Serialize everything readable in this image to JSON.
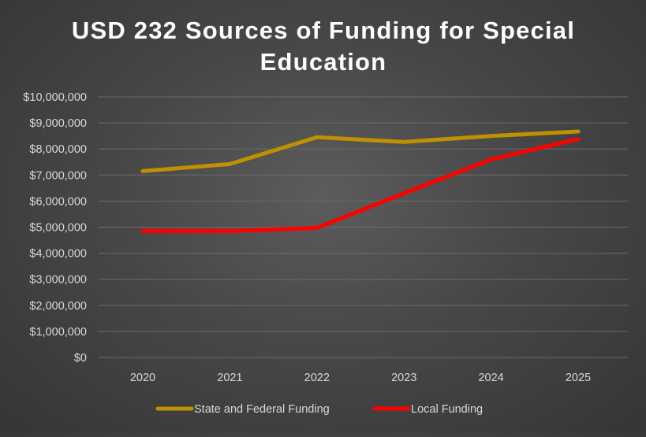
{
  "chart_data": {
    "type": "line",
    "title_lines": [
      "USD 232 Sources of Funding for Special",
      "Education"
    ],
    "xlabel": "",
    "ylabel": "",
    "categories": [
      "2020",
      "2021",
      "2022",
      "2023",
      "2024",
      "2025"
    ],
    "ylim": [
      0,
      10000000
    ],
    "yticks": [
      0,
      1000000,
      2000000,
      3000000,
      4000000,
      5000000,
      6000000,
      7000000,
      8000000,
      9000000,
      10000000
    ],
    "ytick_labels": [
      "$0",
      "$1,000,000",
      "$2,000,000",
      "$3,000,000",
      "$4,000,000",
      "$5,000,000",
      "$6,000,000",
      "$7,000,000",
      "$8,000,000",
      "$9,000,000",
      "$10,000,000"
    ],
    "grid": true,
    "legend_position": "bottom",
    "series": [
      {
        "name": "State and Federal Funding",
        "color": "#bf9000",
        "values": [
          7150000,
          7420000,
          8450000,
          8270000,
          8500000,
          8670000
        ]
      },
      {
        "name": "Local Funding",
        "color": "#ff0000",
        "values": [
          4850000,
          4850000,
          4970000,
          6300000,
          7600000,
          8380000
        ]
      }
    ]
  }
}
